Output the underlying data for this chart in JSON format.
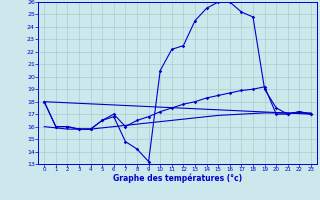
{
  "title": "Graphe des températures (°c)",
  "background_color": "#cce8ec",
  "grid_color": "#aacccc",
  "line_color": "#0000cc",
  "xlim": [
    -0.5,
    23.5
  ],
  "ylim": [
    13,
    26
  ],
  "xticks": [
    0,
    1,
    2,
    3,
    4,
    5,
    6,
    7,
    8,
    9,
    10,
    11,
    12,
    13,
    14,
    15,
    16,
    17,
    18,
    19,
    20,
    21,
    22,
    23
  ],
  "yticks": [
    13,
    14,
    15,
    16,
    17,
    18,
    19,
    20,
    21,
    22,
    23,
    24,
    25,
    26
  ],
  "line1_x": [
    0,
    1,
    2,
    3,
    4,
    5,
    6,
    7,
    8,
    9,
    10,
    11,
    12,
    13,
    14,
    15,
    16,
    17,
    18,
    19,
    20,
    21,
    22,
    23
  ],
  "line1_y": [
    18,
    16,
    16,
    15.8,
    15.8,
    16.5,
    16.8,
    14.8,
    14.2,
    13.2,
    20.5,
    22.2,
    22.5,
    24.5,
    25.5,
    26,
    26,
    25.2,
    24.8,
    19,
    17.5,
    17,
    17.2,
    17
  ],
  "line2_x": [
    0,
    1,
    2,
    3,
    4,
    5,
    6,
    7,
    8,
    9,
    10,
    11,
    12,
    13,
    14,
    15,
    16,
    17,
    18,
    19,
    20,
    21,
    22,
    23
  ],
  "line2_y": [
    18,
    16,
    16,
    15.8,
    15.8,
    16.5,
    17,
    16,
    16.5,
    16.8,
    17.2,
    17.5,
    17.8,
    18.0,
    18.3,
    18.5,
    18.7,
    18.9,
    19.0,
    19.2,
    17.0,
    17.0,
    17.2,
    17.0
  ],
  "line3_x": [
    0,
    1,
    2,
    3,
    4,
    5,
    6,
    7,
    8,
    9,
    10,
    11,
    12,
    13,
    14,
    15,
    16,
    17,
    18,
    19,
    20,
    21,
    22,
    23
  ],
  "line3_y": [
    16,
    15.9,
    15.8,
    15.8,
    15.8,
    15.9,
    16.0,
    16.1,
    16.2,
    16.3,
    16.4,
    16.5,
    16.6,
    16.7,
    16.8,
    16.9,
    16.95,
    17.0,
    17.05,
    17.1,
    17.1,
    17.1,
    17.1,
    17.1
  ],
  "line4_x": [
    0,
    23
  ],
  "line4_y": [
    18,
    17
  ]
}
